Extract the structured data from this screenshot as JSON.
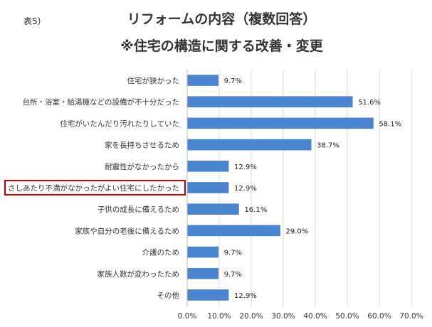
{
  "table_tag": "表5）",
  "title_line1": "リフォームの内容（複数回答）",
  "title_line2": "※住宅の構造に関する改善・変更",
  "highlight_color": "#c0000a",
  "bar_color": "#4a86cf",
  "chart_data": {
    "type": "bar",
    "orientation": "horizontal",
    "categories": [
      "住宅が狭かった",
      "台所・浴室・給湯機などの設備が不十分だった",
      "住宅がいたんだり汚れたりしていた",
      "家を長持ちさせるため",
      "耐震性がなかったから",
      "さしあたり不満がなかったがよい住宅にしたかった",
      "子供の成長に備えるため",
      "家族や自分の老後に備えるため",
      "介護のため",
      "家族人数が変わったため",
      "その他"
    ],
    "values": [
      9.7,
      51.6,
      58.1,
      38.7,
      12.9,
      12.9,
      16.1,
      29.0,
      9.7,
      9.7,
      12.9
    ],
    "value_labels": [
      "9.7%",
      "51.6%",
      "58.1%",
      "38.7%",
      "12.9%",
      "12.9%",
      "16.1%",
      "29.0%",
      "9.7%",
      "9.7%",
      "12.9%"
    ],
    "xlim": [
      0,
      70
    ],
    "xticks": [
      "0.0%",
      "10.0%",
      "20.0%",
      "30.0%",
      "40.0%",
      "50.0%",
      "60.0%",
      "70.0%"
    ],
    "grid": true,
    "highlighted_category": "さしあたり不満がなかったがよい住宅にしたかった"
  }
}
